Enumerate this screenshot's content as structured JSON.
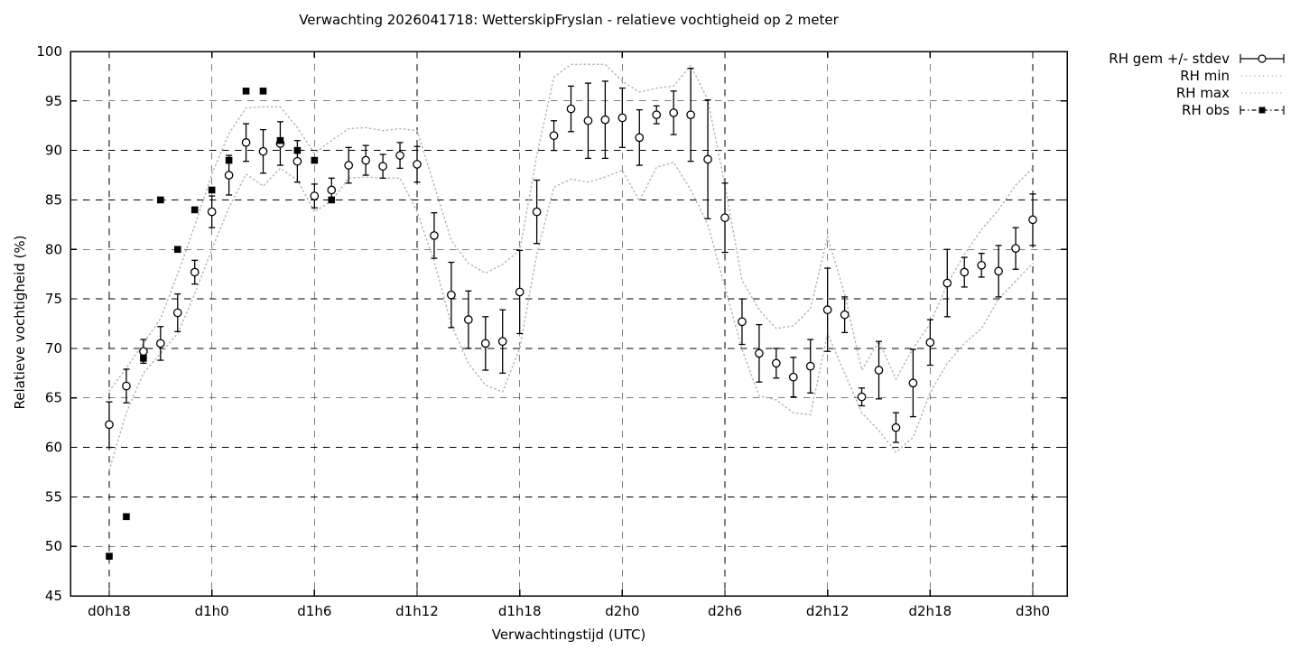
{
  "colors": {
    "foreground": "#000000",
    "background": "#ffffff",
    "envelope_dotted": "#b6b6b6",
    "grid": "#000000"
  },
  "legend": {
    "items": [
      {
        "label": "RH gem +/- stdev",
        "style": "errorbar-circle"
      },
      {
        "label": "RH min",
        "style": "dotted-line"
      },
      {
        "label": "RH max",
        "style": "dotted-line"
      },
      {
        "label": "RH obs",
        "style": "dashdot-filled-square"
      }
    ]
  },
  "chart_data": {
    "type": "line",
    "title": "Verwachting 2026041718: WetterskipFryslan - relatieve vochtigheid op 2 meter",
    "xlabel": "Verwachtingstijd (UTC)",
    "ylabel": "Relatieve vochtigheid (%)",
    "ylim": [
      45,
      100
    ],
    "y_tick_step": 5,
    "y_tick_values": [
      45,
      50,
      55,
      60,
      65,
      70,
      75,
      80,
      85,
      90,
      95,
      100
    ],
    "x_tick_labels": [
      "d0h18",
      "d1h0",
      "d1h6",
      "d1h12",
      "d1h18",
      "d2h0",
      "d2h6",
      "d2h12",
      "d2h18",
      "d3h0"
    ],
    "x_tick_hours": [
      0,
      6,
      12,
      18,
      24,
      30,
      36,
      42,
      48,
      54
    ],
    "x_hours_total": 54,
    "grid": "dashed-both-axes",
    "legend_position": "outside-top-right",
    "series": [
      {
        "name": "RH gem +/- stdev",
        "style": "errorbar-circle",
        "mean": [
          62.3,
          66.2,
          69.7,
          70.5,
          73.6,
          77.7,
          83.8,
          87.5,
          90.8,
          89.9,
          90.7,
          88.9,
          85.4,
          86.0,
          88.5,
          89.0,
          88.4,
          89.5,
          88.6,
          81.4,
          75.4,
          72.9,
          70.5,
          70.7,
          75.7,
          83.8,
          91.5,
          94.2,
          93.0,
          93.1,
          93.3,
          91.3,
          93.6,
          93.8,
          93.6,
          89.1,
          83.2,
          72.7,
          69.5,
          68.5,
          67.1,
          68.2,
          73.9,
          73.4,
          65.1,
          67.8,
          62.0,
          66.5,
          70.6,
          76.6,
          77.7,
          78.4,
          77.8,
          80.1,
          83.0
        ],
        "stdev": [
          2.3,
          1.7,
          1.2,
          1.7,
          1.9,
          1.2,
          1.6,
          2.0,
          1.9,
          2.2,
          2.2,
          2.1,
          1.2,
          1.2,
          1.8,
          1.5,
          1.2,
          1.3,
          1.8,
          2.3,
          3.3,
          2.9,
          2.7,
          3.2,
          4.2,
          3.2,
          1.5,
          2.3,
          3.8,
          3.9,
          3.0,
          2.8,
          0.9,
          2.2,
          4.7,
          6.0,
          3.5,
          2.3,
          2.9,
          1.5,
          2.0,
          2.7,
          4.2,
          1.8,
          0.9,
          2.9,
          1.5,
          3.4,
          2.3,
          3.4,
          1.5,
          1.2,
          2.6,
          2.1,
          2.6
        ]
      },
      {
        "name": "RH min",
        "style": "dotted-line",
        "values": [
          57.7,
          63.5,
          67.5,
          69.5,
          71.5,
          75.5,
          80.0,
          84.2,
          87.6,
          86.4,
          88.2,
          87.0,
          83.8,
          84.9,
          87.2,
          87.3,
          87.2,
          87.2,
          83.8,
          78.8,
          72.4,
          68.5,
          66.3,
          65.6,
          70.0,
          79.5,
          86.3,
          87.1,
          86.8,
          87.3,
          88.0,
          84.9,
          88.3,
          88.8,
          86.0,
          82.5,
          76.2,
          69.9,
          65.2,
          64.8,
          63.5,
          63.3,
          71.5,
          67.5,
          63.5,
          61.7,
          59.5,
          61.0,
          65.5,
          68.5,
          70.5,
          72.0,
          75.0,
          76.8,
          78.6
        ]
      },
      {
        "name": "RH max",
        "style": "dotted-line",
        "values": [
          65.7,
          68.0,
          70.5,
          73.0,
          77.5,
          82.4,
          87.6,
          91.7,
          94.3,
          94.4,
          94.4,
          92.3,
          89.7,
          91.0,
          92.2,
          92.3,
          92.0,
          92.2,
          92.0,
          86.5,
          80.9,
          78.6,
          77.6,
          78.5,
          79.9,
          89.5,
          97.4,
          98.7,
          98.7,
          98.7,
          97.0,
          95.9,
          96.3,
          96.5,
          98.6,
          95.1,
          86.5,
          76.9,
          73.9,
          72.0,
          72.3,
          74.0,
          81.3,
          75.5,
          67.8,
          70.7,
          66.9,
          70.0,
          72.5,
          76.5,
          79.5,
          82.0,
          84.0,
          86.5,
          88.2
        ]
      },
      {
        "name": "RH obs",
        "style": "dashdot-filled-square",
        "hours": [
          0,
          1,
          2,
          3,
          4,
          5,
          6,
          7,
          8,
          9,
          10,
          11,
          12,
          13
        ],
        "values": [
          49,
          53,
          69,
          85,
          80,
          84,
          86,
          89,
          96,
          96,
          91,
          90,
          89,
          85
        ]
      }
    ]
  }
}
